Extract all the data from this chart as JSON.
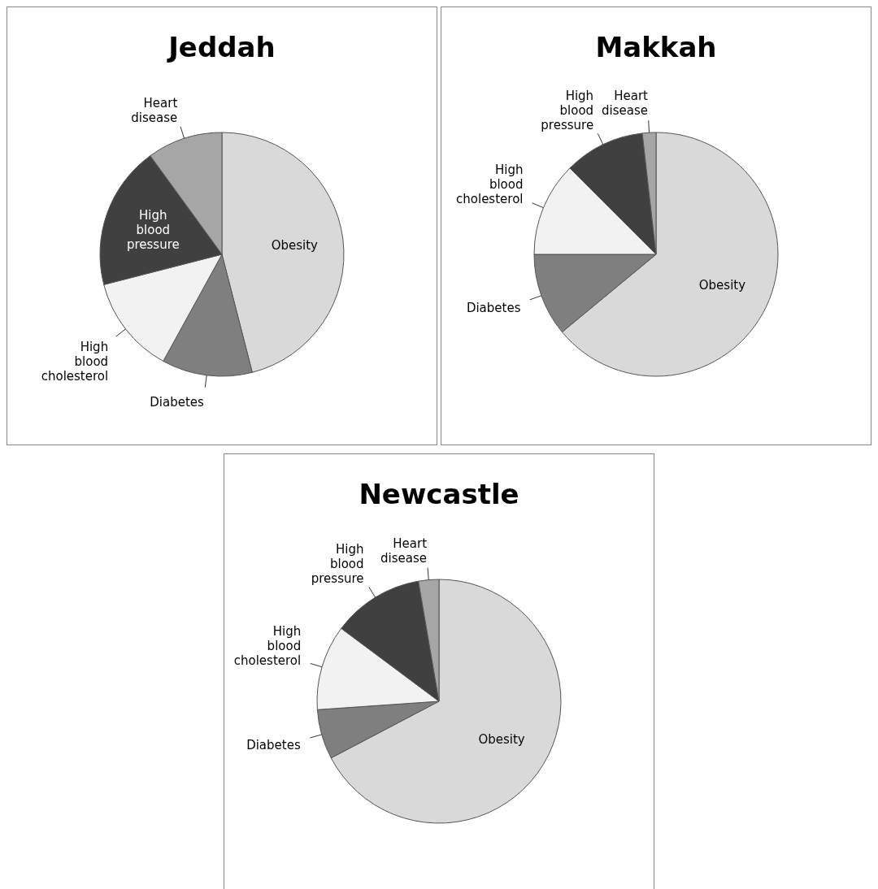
{
  "chart_data": [
    {
      "type": "pie",
      "title": "Jeddah",
      "categories": [
        "Obesity",
        "Diabetes",
        "High blood cholesterol",
        "High blood pressure",
        "Heart disease"
      ],
      "values": [
        46,
        12,
        13,
        19,
        10
      ],
      "colors": [
        "#d9d9d9",
        "#7f7f7f",
        "#f2f2f2",
        "#404040",
        "#a6a6a6"
      ]
    },
    {
      "type": "pie",
      "title": "Makkah",
      "categories": [
        "Obesity",
        "Diabetes",
        "High blood cholesterol",
        "High blood pressure",
        "Heart disease"
      ],
      "values": [
        64,
        11,
        12.5,
        10.7,
        1.8
      ],
      "colors": [
        "#d9d9d9",
        "#7f7f7f",
        "#f2f2f2",
        "#404040",
        "#a6a6a6"
      ]
    },
    {
      "type": "pie",
      "title": "Newcastle",
      "categories": [
        "Obesity",
        "Diabetes",
        "High blood cholesterol",
        "High blood pressure",
        "Heart disease"
      ],
      "values": [
        67.3,
        6.6,
        11.3,
        12.1,
        2.7
      ],
      "colors": [
        "#d9d9d9",
        "#7f7f7f",
        "#f2f2f2",
        "#404040",
        "#a6a6a6"
      ]
    }
  ]
}
